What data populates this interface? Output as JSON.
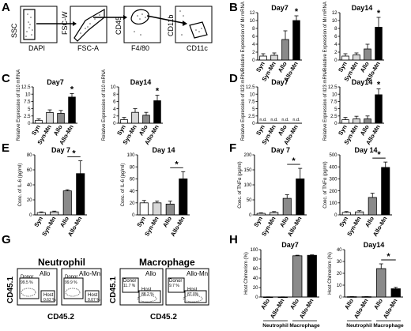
{
  "panels": {
    "A": {
      "letter": "A",
      "plots": [
        {
          "xlabel": "DAPI",
          "ylabel": "SSC"
        },
        {
          "xlabel": "FSC-A",
          "ylabel": "FSC-W"
        },
        {
          "xlabel": "F4/80",
          "ylabel": "CD45"
        },
        {
          "xlabel": "CD11c",
          "ylabel": "CD11b"
        }
      ]
    },
    "G": {
      "letter": "G",
      "groups": [
        {
          "title": "Neutrophil",
          "ylabel": "CD45.1",
          "xlabel": "CD45.2",
          "plots": [
            {
              "label": "Allo",
              "donor_label": "Donor",
              "donor_pct": "99.5 %",
              "host_label": "Host",
              "host_pct": "0.62 %"
            },
            {
              "label": "Allo-Mn",
              "donor_label": "Donor",
              "donor_pct": "99.9 %",
              "host_label": "Host",
              "host_pct": "0.07 %"
            }
          ]
        },
        {
          "title": "Macrophage",
          "ylabel": "CD45.1",
          "xlabel": "CD45.2",
          "plots": [
            {
              "label": "Allo",
              "donor_label": "Donor",
              "donor_pct": "11.7 %",
              "host_label": "Host",
              "host_pct": "88.2 %"
            },
            {
              "label": "Allo-Mn",
              "donor_label": "Donor",
              "donor_pct": "9.7 %",
              "host_label": "Host",
              "host_pct": "87.0%"
            }
          ]
        }
      ]
    },
    "letters": {
      "B": "B",
      "C": "C",
      "D": "D",
      "E": "E",
      "F": "F",
      "H": "H"
    },
    "na_label": "n.d."
  },
  "colors": {
    "syn": "#ffffff",
    "syn_mn": "#d8d8d8",
    "allo": "#8a8a8a",
    "allo_mn": "#000000",
    "axis": "#000000"
  },
  "chart_data": [
    {
      "panel": "B",
      "type": "bar",
      "title": "Day7",
      "ylabel": "Relative Expression of Mr mRNA",
      "categories": [
        "Syn",
        "Syn-Mn",
        "Allo",
        "Allo-Mn"
      ],
      "values": [
        1.0,
        1.2,
        5.2,
        10.0
      ],
      "errors": [
        0.6,
        0.6,
        2.2,
        1.2
      ],
      "ylim": [
        0,
        12
      ],
      "yticks": [
        0,
        2,
        4,
        6,
        8,
        10,
        12
      ],
      "significance": [
        {
          "over": 3,
          "label": "*"
        }
      ]
    },
    {
      "panel": "B",
      "type": "bar",
      "title": "Day14",
      "ylabel": "Relative Expression of Mr mRNA",
      "categories": [
        "Syn",
        "Syn-Mn",
        "Allo",
        "Allo-Mn"
      ],
      "values": [
        1.0,
        1.3,
        2.8,
        8.3
      ],
      "errors": [
        0.6,
        0.5,
        1.2,
        2.5
      ],
      "ylim": [
        0,
        12
      ],
      "yticks": [
        0,
        2,
        4,
        6,
        8,
        10,
        12
      ],
      "significance": [
        {
          "over": 3,
          "label": "*"
        }
      ]
    },
    {
      "panel": "C",
      "type": "bar",
      "title": "Day7",
      "ylabel": "Relative Expression of Il10 mRNA",
      "categories": [
        "Syn",
        "Syn-Mn",
        "Allo",
        "Allo-Mn"
      ],
      "values": [
        1.0,
        3.7,
        3.4,
        9.0
      ],
      "errors": [
        0.5,
        0.9,
        1.0,
        1.2
      ],
      "ylim": [
        0,
        12.5
      ],
      "yticks": [
        0,
        2.5,
        5.0,
        7.5,
        10.0,
        12.5
      ],
      "significance": [
        {
          "over": 3,
          "label": "*"
        }
      ]
    },
    {
      "panel": "C",
      "type": "bar",
      "title": "Day14",
      "ylabel": "Relative Expression of Il10 mRNA",
      "categories": [
        "Syn",
        "Syn-Mn",
        "Allo",
        "Allo-Mn"
      ],
      "values": [
        1.0,
        3.0,
        2.2,
        6.2
      ],
      "errors": [
        0.6,
        1.0,
        0.8,
        1.5
      ],
      "ylim": [
        0,
        10
      ],
      "yticks": [
        0,
        2,
        4,
        6,
        8,
        10
      ],
      "significance": [
        {
          "over": 3,
          "label": "*"
        }
      ]
    },
    {
      "panel": "D",
      "type": "bar",
      "title": "Day7",
      "ylabel": "Relative Expression of Il23 mRNA",
      "categories": [
        "Syn",
        "Syn-Mn",
        "Allo",
        "Allo-Mn"
      ],
      "values": [
        0,
        0,
        0,
        0
      ],
      "errors": [
        0,
        0,
        0,
        0
      ],
      "ylim": [
        0,
        12.5
      ],
      "yticks": [
        0,
        2.5,
        5.0,
        7.5,
        10.0,
        12.5
      ],
      "not_detected": [
        true,
        true,
        true,
        true
      ],
      "significance": []
    },
    {
      "panel": "D",
      "type": "bar",
      "title": "Day14",
      "ylabel": "Relative Expression of Il23 mRNA",
      "categories": [
        "Syn",
        "Syn-Mn",
        "Allo",
        "Allo-Mn"
      ],
      "values": [
        1.2,
        1.5,
        1.5,
        9.8
      ],
      "errors": [
        0.8,
        0.9,
        1.0,
        2.0
      ],
      "ylim": [
        0,
        12.5
      ],
      "yticks": [
        0,
        2.5,
        5.0,
        7.5,
        10.0,
        12.5
      ],
      "significance": [
        {
          "over": 3,
          "label": "*"
        }
      ]
    },
    {
      "panel": "E",
      "type": "bar",
      "title": "Day 7",
      "ylabel": "Conc. of IL-6 (pg/ml)",
      "categories": [
        "Syn",
        "Syn-Mn",
        "Allo",
        "Allo-Mn"
      ],
      "values": [
        3,
        4,
        32,
        55
      ],
      "errors": [
        1,
        1,
        1.5,
        17
      ],
      "ylim": [
        0,
        80
      ],
      "yticks": [
        0,
        20,
        40,
        60,
        80
      ],
      "significance": [
        {
          "from": 2,
          "to": 3,
          "label": "*"
        }
      ]
    },
    {
      "panel": "E",
      "type": "bar",
      "title": "Day 14",
      "ylabel": "Conc. of IL-6 (pg/ml)",
      "categories": [
        "Syn",
        "Syn-Mn",
        "Allo",
        "Allo-Mn"
      ],
      "values": [
        20,
        20,
        18,
        60
      ],
      "errors": [
        4,
        3,
        5,
        12
      ],
      "ylim": [
        0,
        100
      ],
      "yticks": [
        0,
        20,
        40,
        60,
        80,
        100
      ],
      "significance": [
        {
          "from": 2,
          "to": 3,
          "label": "*"
        }
      ]
    },
    {
      "panel": "F",
      "type": "bar",
      "title": "Day 7",
      "ylabel": "Conc. of TNFα (pg/ml)",
      "categories": [
        "Syn",
        "Syn-Mn",
        "Allo",
        "Allo-Mn"
      ],
      "values": [
        5,
        8,
        55,
        120
      ],
      "errors": [
        2,
        3,
        12,
        35
      ],
      "ylim": [
        0,
        200
      ],
      "yticks": [
        0,
        50,
        100,
        150,
        200
      ],
      "significance": [
        {
          "from": 2,
          "to": 3,
          "label": "*"
        }
      ]
    },
    {
      "panel": "F",
      "type": "bar",
      "title": "Day 14",
      "ylabel": "Conc. of TNFα (pg/ml)",
      "categories": [
        "Syn",
        "Syn-Mn",
        "Allo",
        "Allo-Mn"
      ],
      "values": [
        20,
        25,
        145,
        395
      ],
      "errors": [
        8,
        10,
        35,
        45
      ],
      "ylim": [
        0,
        500
      ],
      "yticks": [
        0,
        100,
        200,
        300,
        400,
        500
      ],
      "significance": [
        {
          "from": 2,
          "to": 3,
          "label": "*"
        }
      ]
    },
    {
      "panel": "H",
      "type": "bar",
      "title": "Day7",
      "ylabel": "Host Chimerism (%)",
      "categories": [
        "Allo",
        "Allo-Mn",
        "Allo",
        "Allo-Mn"
      ],
      "groups": [
        "Neutrophil",
        "Macrophage"
      ],
      "values": [
        0.3,
        0.3,
        87,
        88
      ],
      "errors": [
        0.1,
        0.1,
        1.2,
        1.0
      ],
      "ylim": [
        0,
        100
      ],
      "yticks": [
        0,
        20,
        40,
        60,
        80,
        100
      ],
      "significance": []
    },
    {
      "panel": "H",
      "type": "bar",
      "title": "Day14",
      "ylabel": "Host Chimerism (%)",
      "categories": [
        "Allo",
        "Allo-Mn",
        "Allo",
        "Allo-Mn"
      ],
      "groups": [
        "Neutrophil",
        "Macrophage"
      ],
      "values": [
        0.3,
        0.3,
        24,
        7
      ],
      "errors": [
        0.1,
        0.1,
        4,
        1.2
      ],
      "ylim": [
        0,
        40
      ],
      "yticks": [
        0,
        10,
        20,
        30,
        40
      ],
      "significance": [
        {
          "from": 2,
          "to": 3,
          "label": "*"
        }
      ]
    }
  ]
}
